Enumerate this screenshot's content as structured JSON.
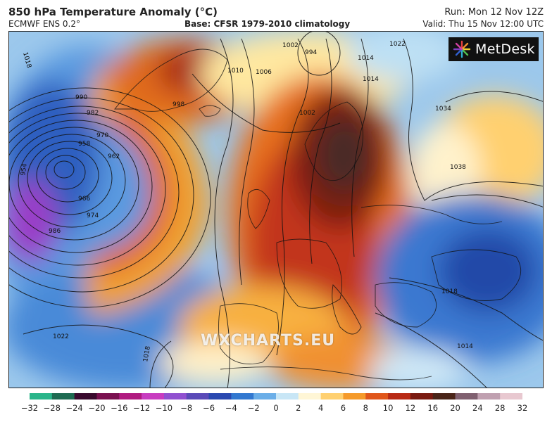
{
  "header": {
    "title": "850 hPa Temperature Anomaly (°C)",
    "model": "ECMWF ENS 0.2°",
    "base": "Base: CFSR 1979-2010 climatology",
    "run": "Run: Mon 12 Nov 12Z",
    "valid": "Valid: Thu 15 Nov 12:00 UTC"
  },
  "brand": {
    "name": "MetDesk",
    "icon": "metdesk-logo-icon"
  },
  "watermark": "WXCHARTS.EU",
  "isobar_labels": [
    "1018",
    "1010",
    "1006",
    "1002",
    "994",
    "1022",
    "1034",
    "1038",
    "990",
    "982",
    "998",
    "970",
    "958",
    "962",
    "954",
    "966",
    "974",
    "986",
    "1002",
    "1014",
    "1018",
    "1022",
    "1018",
    "1014",
    "1014"
  ],
  "colorbar": {
    "ticks": [
      "−32",
      "−28",
      "−24",
      "−20",
      "−16",
      "−12",
      "−10",
      "−8",
      "−6",
      "−4",
      "−2",
      "0",
      "2",
      "4",
      "6",
      "8",
      "10",
      "12",
      "16",
      "20",
      "24",
      "28",
      "32"
    ],
    "colors": [
      "#2ab58a",
      "#1e6b52",
      "#3a0a2e",
      "#7a1050",
      "#b01a80",
      "#c83cc0",
      "#9050d0",
      "#5a4ab8",
      "#2a48b0",
      "#3278d0",
      "#6aaee8",
      "#c8e6f6",
      "#fff6d6",
      "#ffd070",
      "#f59a2a",
      "#e0561a",
      "#b82a14",
      "#7a1a10",
      "#4a2418",
      "#806070",
      "#c0a0b0",
      "#e8c8d0"
    ]
  }
}
